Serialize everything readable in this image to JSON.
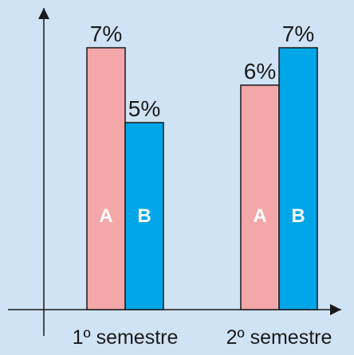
{
  "chart_data": {
    "type": "bar",
    "categories": [
      "1º semestre",
      "2º semestre"
    ],
    "series": [
      {
        "letter": "A",
        "color": "#f4a7a9",
        "values": [
          7,
          6
        ],
        "labels": [
          "7%",
          "6%"
        ]
      },
      {
        "letter": "B",
        "color": "#00a6e8",
        "values": [
          5,
          7
        ],
        "labels": [
          "5%",
          "7%"
        ]
      }
    ],
    "ylim": [
      0,
      10
    ],
    "grid": false,
    "legend": "none"
  }
}
